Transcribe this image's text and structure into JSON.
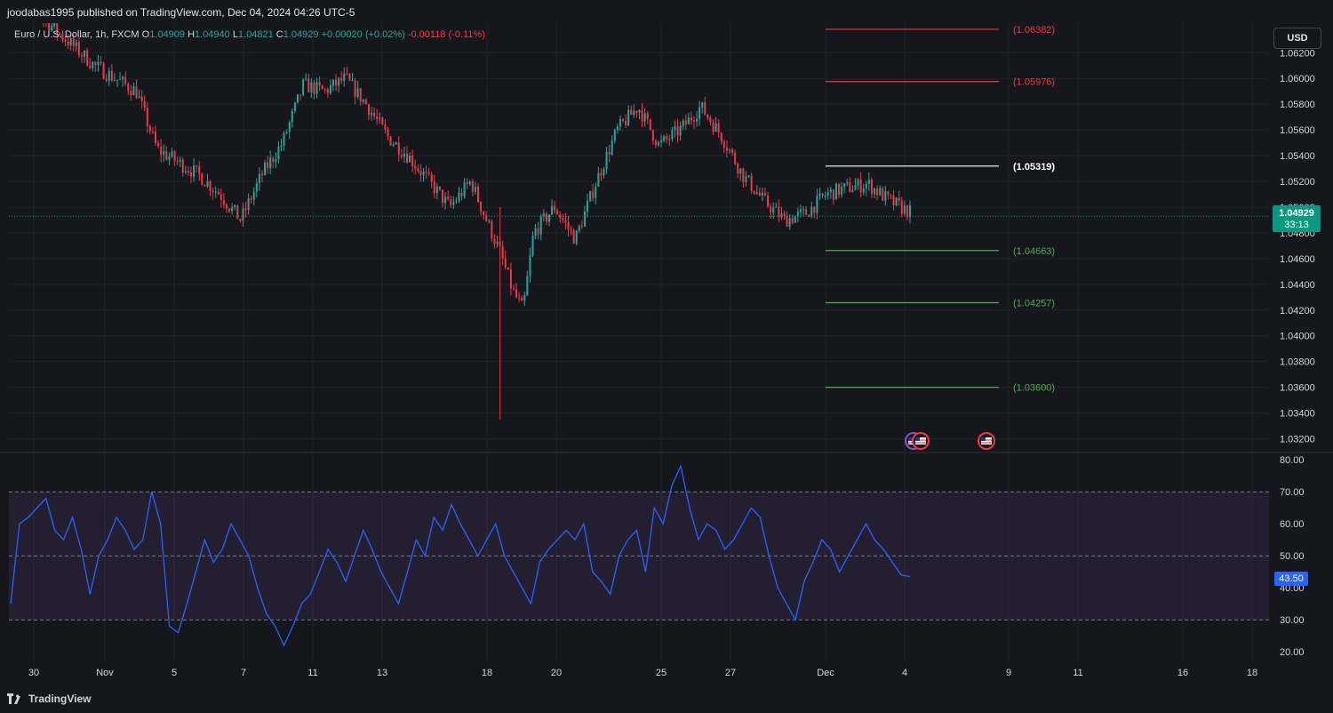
{
  "header": {
    "publisher_text": "joodabas1995 published on TradingView.com, Dec 04, 2024 04:26 UTC-5"
  },
  "legend": {
    "symbol": "Euro / U.S. Dollar, 1h, FXCM",
    "o_label": "O",
    "o_value": "1.04909",
    "h_label": "H",
    "h_value": "1.04940",
    "l_label": "L",
    "l_value": "1.04821",
    "c_label": "C",
    "c_value": "1.04929",
    "change": "+0.00020 (+0.02%)",
    "change2": "-0.00118 (-0.11%)"
  },
  "currency_button": "USD",
  "last_price": {
    "price": "1.04929",
    "countdown": "33:13"
  },
  "rsi_last": "43.50",
  "footer": {
    "brand": "TradingView"
  },
  "colors": {
    "up": "#26a69a",
    "down": "#f23645",
    "rsi_line": "#2962ff",
    "resistance": "#f23645",
    "support": "#4caf50",
    "pivot": "#ffffff"
  },
  "chart_data": [
    {
      "type": "candlestick",
      "title": "Euro / U.S. Dollar, 1h, FXCM",
      "ylim": [
        1.031,
        1.0643
      ],
      "y_ticks": [
        "1.03200",
        "1.03400",
        "1.03600",
        "1.03800",
        "1.04000",
        "1.04200",
        "1.04400",
        "1.04600",
        "1.04800",
        "1.05000",
        "1.05200",
        "1.05400",
        "1.05600",
        "1.05800",
        "1.06000",
        "1.06200"
      ],
      "x_ticks": [
        "30",
        "Nov",
        "5",
        "7",
        "11",
        "13",
        "18",
        "20",
        "25",
        "27",
        "Dec",
        "4",
        "9",
        "11",
        "16",
        "18"
      ],
      "path_points": [
        [
          0,
          1.067
        ],
        [
          2,
          1.064
        ],
        [
          4,
          1.061
        ],
        [
          6,
          1.059
        ],
        [
          7,
          1.0545
        ],
        [
          9,
          1.0525
        ],
        [
          10,
          1.051
        ],
        [
          11,
          1.049
        ],
        [
          12,
          1.0525
        ],
        [
          13,
          1.055
        ],
        [
          14,
          1.0595
        ],
        [
          15,
          1.059
        ],
        [
          16,
          1.06
        ],
        [
          17,
          1.058
        ],
        [
          18,
          1.0555
        ],
        [
          19,
          1.054
        ],
        [
          20,
          1.052
        ],
        [
          21,
          1.05
        ],
        [
          22,
          1.052
        ],
        [
          23,
          1.048
        ],
        [
          23.4,
          1.0465
        ],
        [
          24,
          1.0435
        ],
        [
          24.5,
          1.042
        ],
        [
          25,
          1.048
        ],
        [
          26,
          1.05
        ],
        [
          27,
          1.0475
        ],
        [
          28,
          1.052
        ],
        [
          29,
          1.056
        ],
        [
          30,
          1.0578
        ],
        [
          31,
          1.0548
        ],
        [
          32,
          1.056
        ],
        [
          33,
          1.0578
        ],
        [
          34,
          1.0555
        ],
        [
          35,
          1.0525
        ],
        [
          36,
          1.0505
        ],
        [
          37,
          1.049
        ],
        [
          38,
          1.0495
        ],
        [
          39,
          1.051
        ],
        [
          40,
          1.0515
        ],
        [
          41,
          1.0518
        ],
        [
          42,
          1.0505
        ],
        [
          43,
          1.0496
        ]
      ],
      "horizontal_levels": [
        {
          "label": "(1.06382)",
          "value": 1.06382,
          "role": "resistance"
        },
        {
          "label": "(1.05976)",
          "value": 1.05976,
          "role": "resistance"
        },
        {
          "label": "(1.05319)",
          "value": 1.05319,
          "role": "pivot"
        },
        {
          "label": "(1.04663)",
          "value": 1.04663,
          "role": "support"
        },
        {
          "label": "(1.04257)",
          "value": 1.04257,
          "role": "support"
        },
        {
          "label": "(1.03600)",
          "value": 1.036,
          "role": "support"
        }
      ],
      "current_price": 1.04929
    },
    {
      "type": "line",
      "title": "RSI",
      "ylim": [
        17,
        82
      ],
      "y_ticks": [
        "20.00",
        "30.00",
        "40.00",
        "50.00",
        "60.00",
        "70.00",
        "80.00"
      ],
      "bands": {
        "upper": 70,
        "middle": 50,
        "lower": 30
      },
      "series": [
        {
          "values": [
            35,
            60,
            62,
            65,
            68,
            58,
            55,
            62,
            52,
            38,
            50,
            55,
            62,
            58,
            52,
            55,
            70,
            60,
            28,
            26,
            35,
            45,
            55,
            48,
            52,
            60,
            55,
            50,
            40,
            32,
            28,
            22,
            28,
            35,
            38,
            45,
            52,
            48,
            42,
            50,
            58,
            52,
            45,
            40,
            35,
            45,
            55,
            50,
            62,
            58,
            66,
            60,
            55,
            50,
            55,
            60,
            50,
            45,
            40,
            35,
            48,
            52,
            55,
            58,
            55,
            60,
            45,
            42,
            38,
            50,
            55,
            58,
            45,
            65,
            60,
            72,
            78,
            65,
            55,
            60,
            58,
            52,
            55,
            60,
            65,
            62,
            50,
            40,
            35,
            30,
            42,
            48,
            55,
            52,
            45,
            50,
            55,
            60,
            55,
            52,
            48,
            44,
            43.5
          ]
        }
      ]
    }
  ]
}
